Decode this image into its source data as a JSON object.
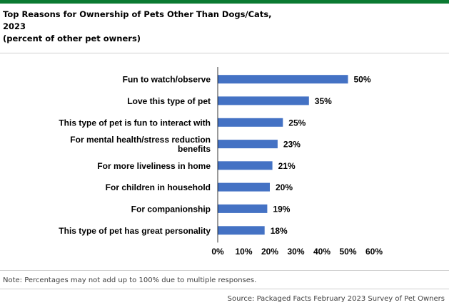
{
  "colors": {
    "top_bar": "#0b7a32",
    "bar": "#4472c4",
    "axis": "#000000",
    "rule": "#cfcfcf"
  },
  "header": {
    "title_line1": "Top Reasons for Ownership of Pets Other Than Dogs/Cats,",
    "title_line2": "2023",
    "title_line3": "(percent of other pet owners)"
  },
  "footer": {
    "note": "Note: Percentages may not add up to 100% due to multiple responses.",
    "source": "Source: Packaged Facts February 2023 Survey of Pet Owners"
  },
  "chart_data": {
    "type": "bar",
    "orientation": "horizontal",
    "title": "Top Reasons for Ownership of Pets Other Than Dogs/Cats, 2023",
    "subtitle": "(percent of other pet owners)",
    "categories": [
      [
        "Fun to watch/observe"
      ],
      [
        "Love this type of pet"
      ],
      [
        "This type of pet is fun to interact with"
      ],
      [
        "For mental health/stress reduction",
        "benefits"
      ],
      [
        "For more liveliness in home"
      ],
      [
        "For children in household"
      ],
      [
        "For companionship"
      ],
      [
        "This type of pet has great personality"
      ]
    ],
    "values": [
      50,
      35,
      25,
      23,
      21,
      20,
      19,
      18
    ],
    "value_labels": [
      "50%",
      "35%",
      "25%",
      "23%",
      "21%",
      "20%",
      "19%",
      "18%"
    ],
    "xlim": [
      0,
      60
    ],
    "xticks": [
      0,
      10,
      20,
      30,
      40,
      50,
      60
    ],
    "xtick_labels": [
      "0%",
      "10%",
      "20%",
      "30%",
      "40%",
      "50%",
      "60%"
    ],
    "grid": false,
    "legend": "none"
  }
}
